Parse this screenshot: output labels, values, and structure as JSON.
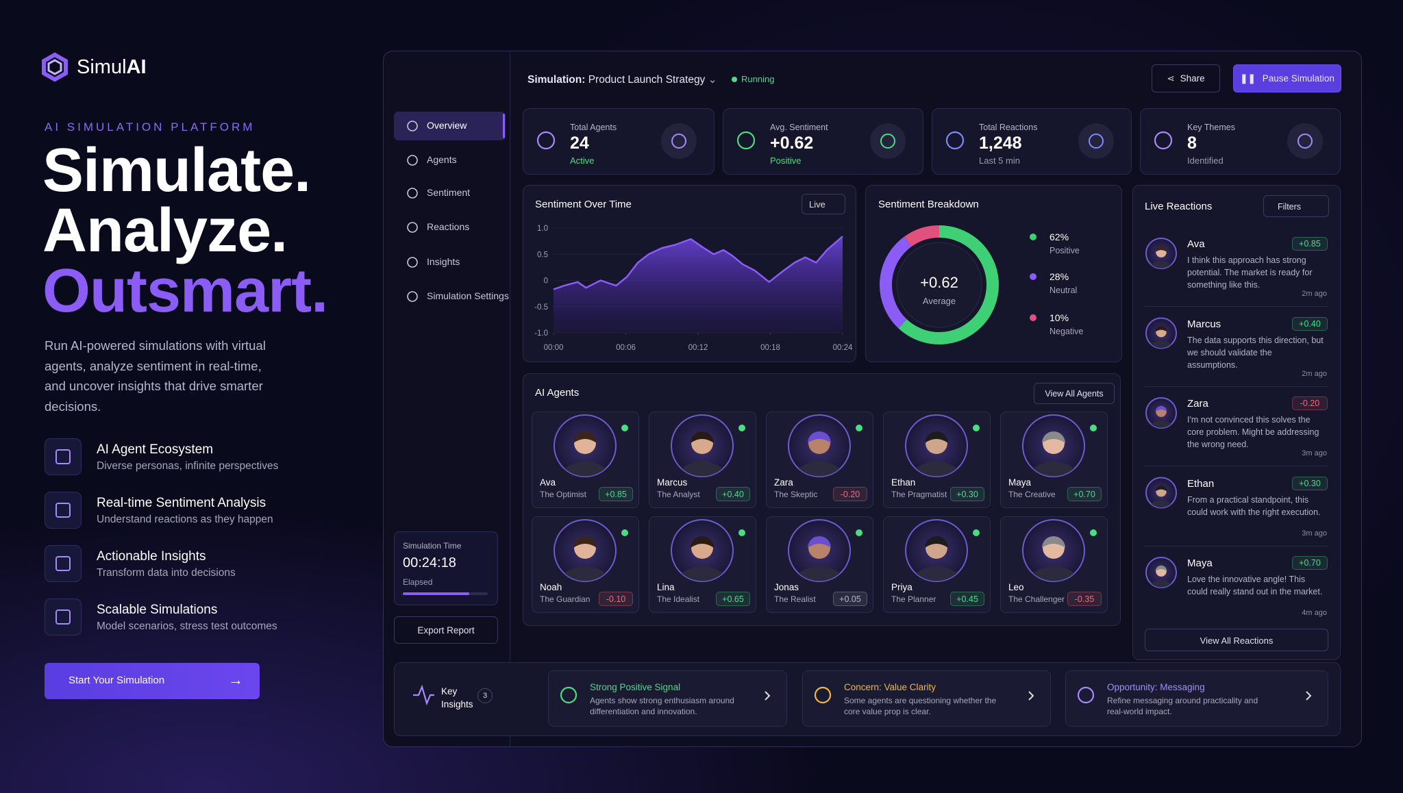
{
  "brand": {
    "prefix": "Simul",
    "suffix": "AI"
  },
  "hero": {
    "eyebrow": "AI SIMULATION PLATFORM",
    "headline": [
      "Simulate.",
      "Analyze.",
      "Outsmart."
    ],
    "text": "Run AI-powered simulations with virtual agents, analyze sentiment in real-time, and uncover insights that drive smarter decisions.",
    "features": [
      {
        "title": "AI Agent Ecosystem",
        "text": "Diverse personas, infinite perspectives"
      },
      {
        "title": "Real-time Sentiment Analysis",
        "text": "Understand reactions as they happen"
      },
      {
        "title": "Actionable Insights",
        "text": "Transform data into decisions"
      },
      {
        "title": "Scalable Simulations",
        "text": "Model scenarios, stress test outcomes"
      }
    ],
    "cta": "Start Your Simulation"
  },
  "topbar": {
    "label": "Simulation:",
    "name": "Product Launch Strategy",
    "status": "Running",
    "share": "Share",
    "pause": "Pause Simulation"
  },
  "sidebar": {
    "nav": [
      "Overview",
      "Agents",
      "Sentiment",
      "Reactions",
      "Insights",
      "Simulation Settings"
    ],
    "timer": {
      "label": "Simulation Time",
      "value": "00:24:18",
      "note": "Elapsed"
    },
    "export": "Export Report"
  },
  "stats": [
    {
      "label": "Total Agents",
      "value": "24",
      "note": "Active",
      "note_color": "#4ade80",
      "color": "#a78bfa"
    },
    {
      "label": "Avg. Sentiment",
      "value": "+0.62",
      "note": "Positive",
      "note_color": "#4ade80",
      "color": "#4ade80"
    },
    {
      "label": "Total Reactions",
      "value": "1,248",
      "note": "Last 5 min",
      "note_color": "#9a9ab4",
      "color": "#7c8cf8"
    },
    {
      "label": "Key Themes",
      "value": "8",
      "note": "Identified",
      "note_color": "#9a9ab4",
      "color": "#a78bfa"
    }
  ],
  "sentiment_chart": {
    "type": "area",
    "title": "Sentiment Over Time",
    "mode": "Live",
    "x": [
      0,
      0.9,
      2,
      2.7,
      3.9,
      5.2,
      6.1,
      7,
      7.9,
      9,
      10.1,
      11.4,
      12.4,
      13.3,
      14.1,
      14.8,
      15.7,
      16.7,
      17.9,
      19,
      20,
      20.9,
      21.8,
      22.7,
      24
    ],
    "values": [
      -0.17,
      -0.1,
      -0.03,
      -0.14,
      0,
      -0.1,
      0.07,
      0.34,
      0.5,
      0.62,
      0.68,
      0.79,
      0.63,
      0.5,
      0.58,
      0.48,
      0.31,
      0.19,
      -0.03,
      0.17,
      0.34,
      0.44,
      0.34,
      0.58,
      0.84
    ],
    "xlim": [
      0,
      24
    ],
    "ylim": [
      -1,
      1
    ],
    "xticks": [
      {
        "value": 0,
        "label": "00:00"
      },
      {
        "value": 6,
        "label": "00:06"
      },
      {
        "value": 12,
        "label": "00:12"
      },
      {
        "value": 18,
        "label": "00:18"
      },
      {
        "value": 24,
        "label": "00:24"
      }
    ],
    "yticks": [
      {
        "value": 1,
        "label": "1.0"
      },
      0.5,
      0,
      -0.5,
      {
        "value": -1,
        "label": "-1.0"
      }
    ],
    "color": "#8b5cf6",
    "grid": true
  },
  "breakdown": {
    "type": "donut",
    "title": "Sentiment Breakdown",
    "center_value": "+0.62",
    "center_label": "Average",
    "categories": [
      "Positive",
      "Neutral",
      "Negative"
    ],
    "values": [
      62,
      28,
      10
    ],
    "value_labels": [
      "62%",
      "28%",
      "10%"
    ],
    "colors": [
      "#3fcf74",
      "#8b5cf6",
      "#e0517e"
    ]
  },
  "agents": {
    "title": "AI Agents",
    "button": "View All Agents",
    "items": [
      {
        "name": "Ava",
        "role": "The Optimist",
        "score": "+0.85",
        "color": "#4ade80"
      },
      {
        "name": "Marcus",
        "role": "The Analyst",
        "score": "+0.40",
        "color": "#4ade80"
      },
      {
        "name": "Zara",
        "role": "The Skeptic",
        "score": "-0.20",
        "color": "#f26b7a"
      },
      {
        "name": "Ethan",
        "role": "The Pragmatist",
        "score": "+0.30",
        "color": "#4ade80"
      },
      {
        "name": "Maya",
        "role": "The Creative",
        "score": "+0.70",
        "color": "#4ade80"
      },
      {
        "name": "Noah",
        "role": "The Guardian",
        "score": "-0.10",
        "color": "#f26b7a"
      },
      {
        "name": "Lina",
        "role": "The Idealist",
        "score": "+0.65",
        "color": "#4ade80"
      },
      {
        "name": "Jonas",
        "role": "The Realist",
        "score": "+0.05",
        "color": "#b8b8cc"
      },
      {
        "name": "Priya",
        "role": "The Planner",
        "score": "+0.45",
        "color": "#4ade80"
      },
      {
        "name": "Leo",
        "role": "The Challenger",
        "score": "-0.35",
        "color": "#f26b7a"
      }
    ]
  },
  "reactions": {
    "title": "Live Reactions",
    "filter": "Filters",
    "button": "View All Reactions",
    "items": [
      {
        "name": "Ava",
        "score": "+0.85",
        "color": "#4ade80",
        "text": "I think this approach has strong potential. The market is ready for something like this.",
        "time": "2m ago"
      },
      {
        "name": "Marcus",
        "score": "+0.40",
        "color": "#4ade80",
        "text": "The data supports this direction, but we should validate the assumptions.",
        "time": "2m ago"
      },
      {
        "name": "Zara",
        "score": "-0.20",
        "color": "#f26b7a",
        "text": "I'm not convinced this solves the core problem. Might be addressing the wrong need.",
        "time": "3m ago"
      },
      {
        "name": "Ethan",
        "score": "+0.30",
        "color": "#4ade80",
        "text": "From a practical standpoint, this could work with the right execution.",
        "time": "3m ago"
      },
      {
        "name": "Maya",
        "score": "+0.70",
        "color": "#4ade80",
        "text": "Love the innovative angle! This could really stand out in the market.",
        "time": "4m ago"
      }
    ]
  },
  "insights": {
    "title": "Key Insights",
    "count": "3",
    "items": [
      {
        "title": "Strong Positive Signal",
        "text": "Agents show strong enthusiasm around differentiation and innovation.",
        "color": "#4ade80"
      },
      {
        "title": "Concern: Value Clarity",
        "text": "Some agents are questioning whether the core value prop is clear.",
        "color": "#f5b83d"
      },
      {
        "title": "Opportunity: Messaging",
        "text": "Refine messaging around practicality and real-world impact.",
        "color": "#a78bfa"
      }
    ]
  }
}
